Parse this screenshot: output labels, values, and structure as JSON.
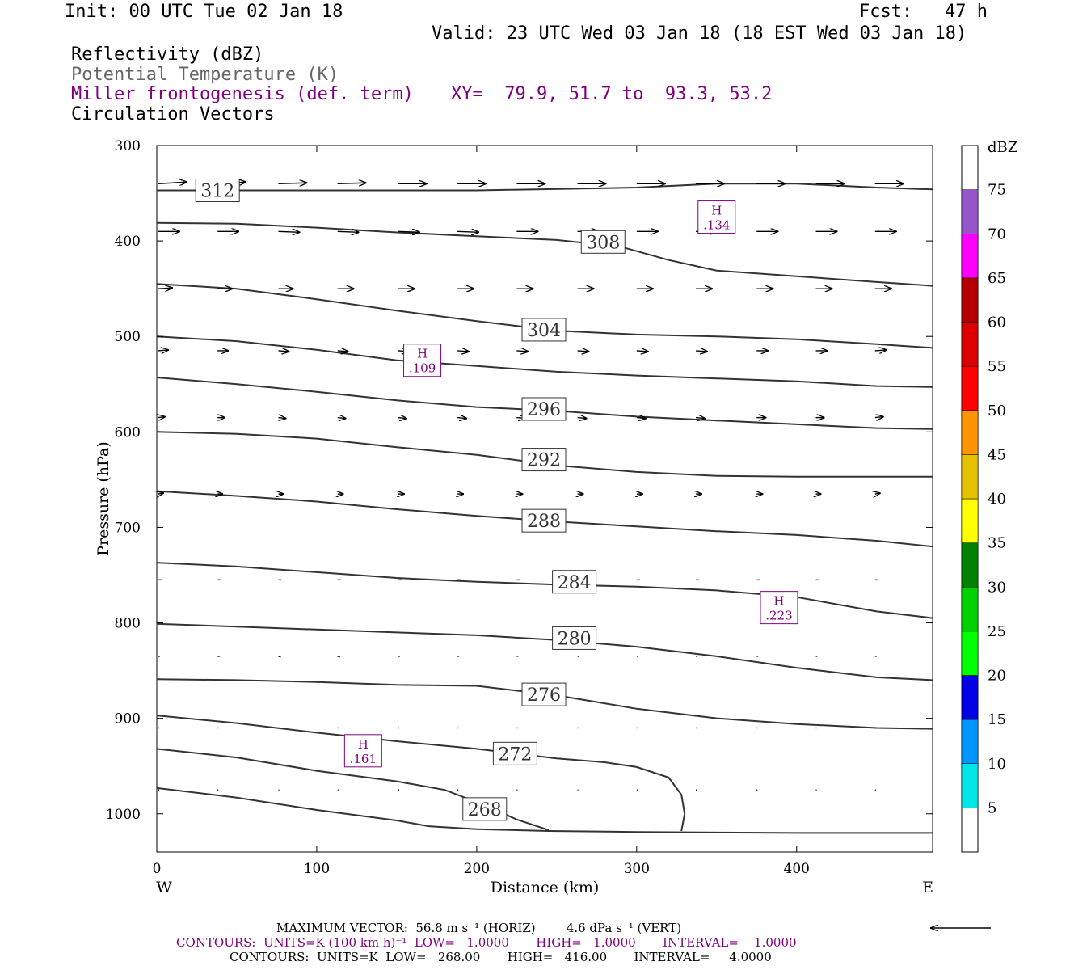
{
  "header": {
    "init": "Init: 00 UTC Tue 02 Jan 18",
    "fcst": "Fcst:   47 h",
    "valid": "Valid: 23 UTC Wed 03 Jan 18 (18 EST Wed 03 Jan 18)",
    "fields": [
      {
        "label": "Reflectivity (dBZ)",
        "color": "#000000"
      },
      {
        "label": "Potential Temperature (K)",
        "color": "#666666"
      },
      {
        "label": "Miller frontogenesis (def. term)",
        "color": "#800080"
      },
      {
        "label": "Circulation Vectors",
        "color": "#000000"
      }
    ],
    "xy": "XY=  79.9, 51.7 to  93.3, 53.2"
  },
  "colorbar": {
    "unit": "dBZ",
    "levels": [
      "5",
      "10",
      "15",
      "20",
      "25",
      "30",
      "35",
      "40",
      "45",
      "50",
      "55",
      "60",
      "65",
      "70",
      "75"
    ],
    "colors": [
      "#00e5e5",
      "#0096ff",
      "#0000e6",
      "#00ff00",
      "#00d200",
      "#008200",
      "#ffff00",
      "#e6c300",
      "#ff9600",
      "#ff0000",
      "#dc0000",
      "#b40000",
      "#ff00ff",
      "#9655c8"
    ]
  },
  "footer": {
    "max_vector": "MAXIMUM VECTOR:  56.8 m s⁻¹ (HORIZ)        4.6 dPa s⁻¹ (VERT)",
    "contours_fronto": "CONTOURS:  UNITS=K (100 km h)⁻¹  LOW=   1.0000       HIGH=   1.0000       INTERVAL=    1.0000",
    "contours_theta": "CONTOURS:  UNITS=K  LOW=   268.00       HIGH=   416.00       INTERVAL=     4.0000"
  },
  "chart_data": {
    "type": "cross-section",
    "xlabel": "Distance (km)",
    "ylabel": "Pressure (hPa)",
    "xlim": [
      0,
      485
    ],
    "ylim": [
      1040,
      300
    ],
    "x_ticks": [
      0,
      100,
      200,
      300,
      400
    ],
    "y_ticks": [
      300,
      400,
      500,
      600,
      700,
      800,
      900,
      1000
    ],
    "x_end_labels": {
      "left": "W",
      "right": "E"
    },
    "isentropes": [
      {
        "theta": 312,
        "label_at": [
          38,
          347
        ],
        "points": [
          [
            0,
            347
          ],
          [
            100,
            347
          ],
          [
            200,
            347
          ],
          [
            300,
            344
          ],
          [
            350,
            340
          ],
          [
            400,
            340
          ],
          [
            450,
            344
          ],
          [
            485,
            346
          ]
        ]
      },
      {
        "theta": 308,
        "label_at": [
          279,
          401
        ],
        "points": [
          [
            0,
            381
          ],
          [
            50,
            382
          ],
          [
            100,
            386
          ],
          [
            150,
            391
          ],
          [
            200,
            395
          ],
          [
            250,
            399
          ],
          [
            290,
            406
          ],
          [
            320,
            420
          ],
          [
            350,
            431
          ],
          [
            400,
            437
          ],
          [
            450,
            443
          ],
          [
            485,
            447
          ]
        ]
      },
      {
        "theta": 304,
        "label_at": [
          242,
          493
        ],
        "points": [
          [
            0,
            445
          ],
          [
            50,
            450
          ],
          [
            100,
            461
          ],
          [
            150,
            473
          ],
          [
            200,
            484
          ],
          [
            250,
            494
          ],
          [
            300,
            498
          ],
          [
            350,
            500
          ],
          [
            400,
            503
          ],
          [
            450,
            508
          ],
          [
            485,
            512
          ]
        ]
      },
      {
        "theta": 300,
        "label_at": null,
        "points": [
          [
            0,
            500
          ],
          [
            50,
            505
          ],
          [
            100,
            514
          ],
          [
            150,
            525
          ],
          [
            200,
            531
          ],
          [
            250,
            537
          ],
          [
            300,
            541
          ],
          [
            350,
            544
          ],
          [
            400,
            547
          ],
          [
            450,
            552
          ],
          [
            485,
            553
          ]
        ]
      },
      {
        "theta": 296,
        "label_at": [
          242,
          576
        ],
        "points": [
          [
            0,
            543
          ],
          [
            50,
            550
          ],
          [
            100,
            558
          ],
          [
            150,
            567
          ],
          [
            200,
            574
          ],
          [
            250,
            578
          ],
          [
            300,
            584
          ],
          [
            350,
            588
          ],
          [
            400,
            592
          ],
          [
            450,
            596
          ],
          [
            485,
            597
          ]
        ]
      },
      {
        "theta": 292,
        "label_at": [
          242,
          629
        ],
        "points": [
          [
            0,
            600
          ],
          [
            50,
            602
          ],
          [
            100,
            607
          ],
          [
            150,
            616
          ],
          [
            200,
            624
          ],
          [
            250,
            635
          ],
          [
            300,
            642
          ],
          [
            350,
            646
          ],
          [
            400,
            647
          ],
          [
            450,
            647
          ],
          [
            485,
            647
          ]
        ]
      },
      {
        "theta": 288,
        "label_at": [
          242,
          693
        ],
        "points": [
          [
            0,
            662
          ],
          [
            50,
            667
          ],
          [
            100,
            673
          ],
          [
            150,
            681
          ],
          [
            200,
            688
          ],
          [
            250,
            694
          ],
          [
            300,
            699
          ],
          [
            350,
            704
          ],
          [
            400,
            708
          ],
          [
            450,
            714
          ],
          [
            485,
            720
          ]
        ]
      },
      {
        "theta": 284,
        "label_at": [
          261,
          757
        ],
        "points": [
          [
            0,
            737
          ],
          [
            50,
            741
          ],
          [
            100,
            747
          ],
          [
            150,
            753
          ],
          [
            200,
            757
          ],
          [
            250,
            760
          ],
          [
            300,
            762
          ],
          [
            350,
            766
          ],
          [
            400,
            773
          ],
          [
            450,
            788
          ],
          [
            485,
            795
          ]
        ]
      },
      {
        "theta": 280,
        "label_at": [
          261,
          816
        ],
        "points": [
          [
            0,
            801
          ],
          [
            50,
            804
          ],
          [
            100,
            807
          ],
          [
            150,
            810
          ],
          [
            200,
            813
          ],
          [
            250,
            818
          ],
          [
            300,
            825
          ],
          [
            350,
            835
          ],
          [
            400,
            847
          ],
          [
            450,
            857
          ],
          [
            485,
            860
          ]
        ]
      },
      {
        "theta": 276,
        "label_at": [
          242,
          875
        ],
        "points": [
          [
            0,
            859
          ],
          [
            50,
            860
          ],
          [
            100,
            862
          ],
          [
            150,
            865
          ],
          [
            200,
            866
          ],
          [
            250,
            876
          ],
          [
            300,
            890
          ],
          [
            350,
            900
          ],
          [
            400,
            906
          ],
          [
            450,
            910
          ],
          [
            485,
            911
          ]
        ]
      },
      {
        "theta": 272,
        "label_at": [
          224,
          937
        ],
        "points": [
          [
            0,
            897
          ],
          [
            50,
            905
          ],
          [
            100,
            915
          ],
          [
            150,
            924
          ],
          [
            200,
            932
          ],
          [
            250,
            942
          ],
          [
            280,
            946
          ],
          [
            300,
            951
          ],
          [
            320,
            962
          ],
          [
            328,
            980
          ],
          [
            330,
            1000
          ],
          [
            328,
            1018
          ]
        ]
      },
      {
        "theta": 268,
        "label_at": [
          205,
          995
        ],
        "points": [
          [
            0,
            932
          ],
          [
            50,
            941
          ],
          [
            100,
            955
          ],
          [
            150,
            966
          ],
          [
            180,
            975
          ],
          [
            205,
            991
          ],
          [
            225,
            1006
          ],
          [
            245,
            1017
          ]
        ]
      },
      {
        "theta": 264,
        "label_at": null,
        "points": [
          [
            0,
            973
          ],
          [
            50,
            983
          ],
          [
            100,
            996
          ],
          [
            150,
            1007
          ],
          [
            170,
            1013
          ],
          [
            200,
            1016
          ],
          [
            245,
            1018
          ],
          [
            300,
            1019
          ],
          [
            400,
            1020
          ],
          [
            485,
            1020
          ]
        ]
      }
    ],
    "frontogenesis_highs": [
      {
        "label": "H",
        "value": ".134",
        "x": 350,
        "p": 375
      },
      {
        "label": "H",
        "value": ".109",
        "x": 166,
        "p": 525
      },
      {
        "label": "H",
        "value": ".223",
        "x": 389,
        "p": 784
      },
      {
        "label": "H",
        "value": ".161",
        "x": 129,
        "p": 934
      }
    ],
    "vectors": {
      "x": [
        0,
        37,
        75,
        112,
        150,
        187,
        224,
        262,
        299,
        336,
        374,
        411,
        448
      ],
      "rows": [
        {
          "p": 340,
          "dx": [
            35,
            35,
            35,
            35,
            35,
            35,
            35,
            35,
            35,
            35,
            35,
            35,
            35
          ],
          "dy": [
            -2,
            -2,
            -1,
            -1,
            0,
            0,
            0,
            0,
            0,
            0,
            0,
            0,
            0
          ]
        },
        {
          "p": 390,
          "dx": [
            26,
            26,
            26,
            26,
            26,
            26,
            26,
            26,
            26,
            26,
            26,
            26,
            26
          ],
          "dy": [
            0,
            0,
            1,
            1,
            1,
            1,
            0,
            0,
            0,
            0,
            0,
            0,
            0
          ]
        },
        {
          "p": 450,
          "dx": [
            17,
            18,
            18,
            20,
            20,
            20,
            20,
            20,
            20,
            20,
            20,
            20,
            20
          ],
          "dy": [
            -1,
            0,
            0,
            0,
            0,
            0,
            0,
            0,
            0,
            0,
            0,
            0,
            0
          ]
        },
        {
          "p": 515,
          "dx": [
            12,
            13,
            13,
            13,
            13,
            14,
            14,
            14,
            14,
            14,
            14,
            14,
            14
          ],
          "dy": [
            -1,
            0,
            1,
            1,
            1,
            1,
            1,
            1,
            1,
            1,
            0,
            0,
            -1
          ]
        },
        {
          "p": 585,
          "dx": [
            8,
            9,
            9,
            10,
            10,
            11,
            11,
            11,
            11,
            11,
            11,
            10,
            10
          ],
          "dy": [
            -1,
            0,
            1,
            1,
            1,
            1,
            1,
            1,
            1,
            1,
            0,
            0,
            -1
          ]
        },
        {
          "p": 665,
          "dx": [
            6,
            6,
            6,
            7,
            7,
            7,
            7,
            7,
            7,
            7,
            7,
            6,
            6
          ],
          "dy": [
            -1,
            0,
            0,
            0,
            0,
            0,
            0,
            0,
            0,
            0,
            0,
            0,
            -1
          ]
        },
        {
          "p": 755,
          "dx": [
            4,
            4,
            4,
            4,
            4,
            4,
            4,
            4,
            4,
            4,
            4,
            4,
            4
          ],
          "dy": [
            0,
            0,
            0,
            0,
            0,
            0,
            0,
            0,
            0,
            0,
            0,
            0,
            0
          ]
        },
        {
          "p": 835,
          "dx": [
            2,
            3,
            3,
            3,
            2,
            2,
            2,
            2,
            2,
            2,
            2,
            2,
            2
          ],
          "dy": [
            0,
            0,
            1,
            1,
            0,
            0,
            0,
            0,
            0,
            0,
            0,
            0,
            0
          ]
        },
        {
          "p": 910,
          "dx": [
            1,
            1,
            1,
            1,
            1,
            1,
            1,
            1,
            1,
            1,
            1,
            1,
            1
          ],
          "dy": [
            0,
            0,
            0,
            0,
            0,
            0,
            0,
            0,
            0,
            0,
            0,
            0,
            0
          ]
        },
        {
          "p": 975,
          "dx": [
            1,
            1,
            1,
            1,
            1,
            1,
            1,
            1,
            1,
            1,
            1,
            1,
            1
          ],
          "dy": [
            0,
            0,
            0,
            0,
            0,
            0,
            0,
            0,
            0,
            0,
            0,
            0,
            0
          ]
        }
      ]
    },
    "reference_vector": {
      "direction": "left"
    }
  }
}
